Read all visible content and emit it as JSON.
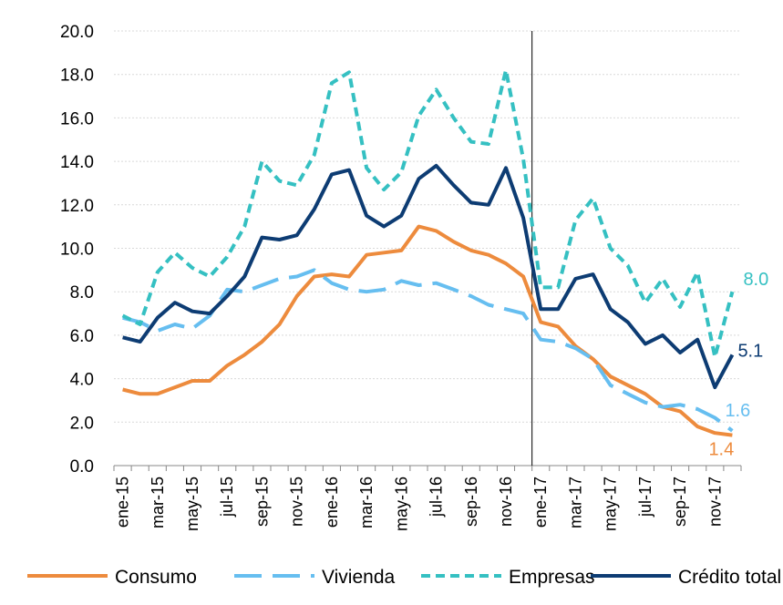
{
  "chart_data": {
    "type": "line",
    "title": "",
    "xlabel": "",
    "ylabel": "",
    "ylim": [
      0,
      20
    ],
    "y_ticks": [
      "0.0",
      "2.0",
      "4.0",
      "6.0",
      "8.0",
      "10.0",
      "12.0",
      "14.0",
      "16.0",
      "18.0",
      "20.0"
    ],
    "categories": [
      "ene-15",
      "feb-15",
      "mar-15",
      "abr-15",
      "may-15",
      "jun-15",
      "jul-15",
      "ago-15",
      "sep-15",
      "oct-15",
      "nov-15",
      "dic-15",
      "ene-16",
      "feb-16",
      "mar-16",
      "abr-16",
      "may-16",
      "jun-16",
      "jul-16",
      "ago-16",
      "sep-16",
      "oct-16",
      "nov-16",
      "dic-16",
      "ene-17",
      "feb-17",
      "mar-17",
      "abr-17",
      "may-17",
      "jun-17",
      "jul-17",
      "ago-17",
      "sep-17",
      "oct-17",
      "nov-17",
      "dic-17"
    ],
    "x_tick_labels": [
      "ene-15",
      "mar-15",
      "may-15",
      "jul-15",
      "sep-15",
      "nov-15",
      "ene-16",
      "mar-16",
      "may-16",
      "jul-16",
      "sep-16",
      "nov-16",
      "ene-17",
      "mar-17",
      "may-17",
      "jul-17",
      "sep-17",
      "nov-17"
    ],
    "vertical_line_at": "ene-17",
    "legend_position": "bottom",
    "grid": true,
    "series": [
      {
        "name": "Consumo",
        "color": "#ED8B3D",
        "style": "solid",
        "values": [
          3.5,
          3.3,
          3.3,
          3.6,
          3.9,
          3.9,
          4.6,
          5.1,
          5.7,
          6.5,
          7.8,
          8.7,
          8.8,
          8.7,
          9.7,
          9.8,
          9.9,
          11.0,
          10.8,
          10.3,
          9.9,
          9.7,
          9.3,
          8.7,
          6.6,
          6.4,
          5.5,
          4.9,
          4.1,
          3.7,
          3.3,
          2.7,
          2.5,
          1.8,
          1.5,
          1.4
        ],
        "end_label": "1.4"
      },
      {
        "name": "Vivienda",
        "color": "#66BEF0",
        "style": "longdash",
        "values": [
          6.8,
          6.6,
          6.2,
          6.5,
          6.3,
          6.9,
          8.1,
          8.0,
          8.3,
          8.6,
          8.7,
          9.0,
          8.4,
          8.1,
          8.0,
          8.1,
          8.5,
          8.3,
          8.4,
          8.1,
          7.8,
          7.4,
          7.2,
          7.0,
          5.8,
          5.7,
          5.4,
          4.9,
          3.7,
          3.3,
          2.9,
          2.7,
          2.8,
          2.6,
          2.2,
          1.6
        ],
        "end_label": "1.6"
      },
      {
        "name": "Empresas",
        "color": "#35C0C2",
        "style": "dash",
        "values": [
          6.9,
          6.5,
          8.9,
          9.8,
          9.1,
          8.7,
          9.6,
          11.0,
          14.0,
          13.1,
          12.9,
          14.3,
          17.6,
          18.1,
          13.7,
          12.7,
          13.5,
          16.1,
          17.3,
          16.0,
          14.9,
          14.8,
          18.2,
          14.1,
          8.2,
          8.2,
          11.3,
          12.3,
          10.0,
          9.2,
          7.5,
          8.6,
          7.3,
          8.9,
          5.0,
          8.0
        ],
        "end_label": "8.0"
      },
      {
        "name": "Crédito total",
        "color": "#0D3C73",
        "style": "solid",
        "values": [
          5.9,
          5.7,
          6.8,
          7.5,
          7.1,
          7.0,
          7.8,
          8.7,
          10.5,
          10.4,
          10.6,
          11.8,
          13.4,
          13.6,
          11.5,
          11.0,
          11.5,
          13.2,
          13.8,
          12.9,
          12.1,
          12.0,
          13.7,
          11.4,
          7.2,
          7.2,
          8.6,
          8.8,
          7.2,
          6.6,
          5.6,
          6.0,
          5.2,
          5.8,
          3.6,
          5.1
        ],
        "end_label": "5.1"
      }
    ]
  }
}
